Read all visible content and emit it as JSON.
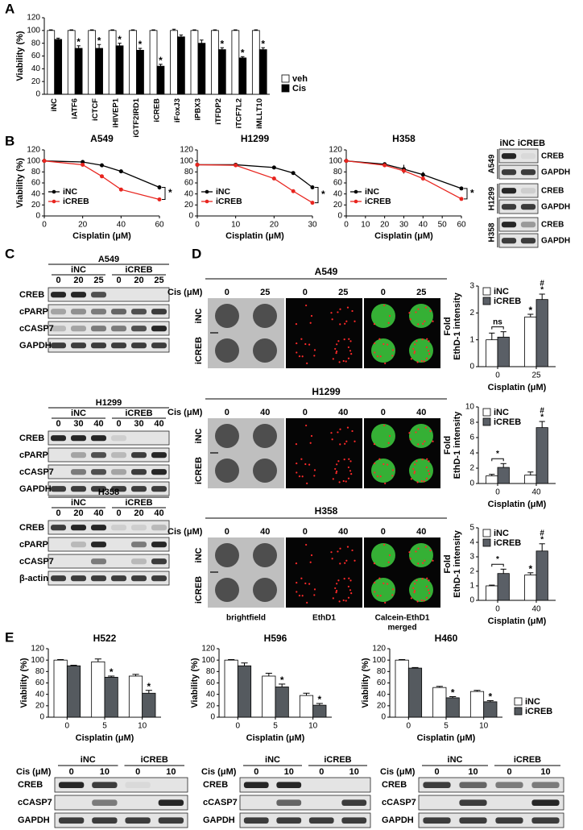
{
  "figure": {
    "panel_labels": [
      "A",
      "B",
      "C",
      "D",
      "E"
    ]
  },
  "chart_data": [
    {
      "type": "bar",
      "ylabel": "Viability (%)",
      "categories": [
        "iNC",
        "iATF6",
        "iCTCF",
        "iHIVEP1",
        "iGTF2IRD1",
        "iCREB",
        "iFoxJ3",
        "iPBX3",
        "iTFDP2",
        "iTCF7L2",
        "iMLLT10"
      ],
      "series": [
        {
          "name": "veh",
          "color": "#ffffff",
          "values": [
            100,
            100,
            100,
            100,
            100,
            100,
            100,
            100,
            100,
            100,
            100
          ],
          "errors": [
            1,
            1,
            1,
            1,
            1,
            1,
            2,
            1,
            1,
            1,
            1
          ]
        },
        {
          "name": "Cis",
          "color": "#000000",
          "values": [
            86,
            72,
            72,
            76,
            69,
            44,
            90,
            80,
            70,
            57,
            70
          ],
          "errors": [
            2,
            4,
            6,
            4,
            3,
            3,
            3,
            5,
            3,
            2,
            3
          ],
          "markers": [
            null,
            "*",
            "*",
            "*",
            "*",
            "*",
            null,
            null,
            "*",
            "*",
            "*"
          ]
        }
      ],
      "ylim": [
        0,
        120
      ],
      "yticks": [
        0,
        20,
        40,
        60,
        80,
        100,
        120
      ],
      "legend": "right"
    },
    {
      "type": "line",
      "title": "A549",
      "xlabel": "Cisplatin (μM)",
      "ylabel": "Viability (%)",
      "x": [
        0,
        20,
        30,
        40,
        60
      ],
      "xlim": [
        0,
        60
      ],
      "xticks": [
        0,
        20,
        40,
        60
      ],
      "ylim": [
        0,
        120
      ],
      "yticks": [
        0,
        20,
        40,
        60,
        80,
        100,
        120
      ],
      "series": [
        {
          "name": "iNC",
          "color": "#000000",
          "values": [
            100,
            98,
            92,
            81,
            52
          ],
          "errors": [
            1,
            2,
            2,
            2,
            4
          ]
        },
        {
          "name": "iCREB",
          "color": "#e8251f",
          "values": [
            100,
            93,
            72,
            48,
            30
          ],
          "errors": [
            1,
            2,
            2,
            2,
            2
          ]
        }
      ],
      "legend": "lower left",
      "annotation": "*"
    },
    {
      "type": "line",
      "title": "H1299",
      "xlabel": "Cisplatin (μM)",
      "x": [
        0,
        10,
        20,
        25,
        30
      ],
      "xlim": [
        0,
        30
      ],
      "xticks": [
        0,
        10,
        20,
        30
      ],
      "ylim": [
        0,
        120
      ],
      "yticks": [
        0,
        20,
        40,
        60,
        80,
        100,
        120
      ],
      "series": [
        {
          "name": "iNC",
          "color": "#000000",
          "values": [
            93,
            93,
            88,
            78,
            52
          ],
          "errors": [
            1,
            2,
            2,
            2,
            3
          ]
        },
        {
          "name": "iCREB",
          "color": "#e8251f",
          "values": [
            93,
            92,
            68,
            45,
            24
          ],
          "errors": [
            1,
            2,
            2,
            3,
            2
          ]
        }
      ],
      "legend": "lower left",
      "annotation": "*"
    },
    {
      "type": "line",
      "title": "H358",
      "xlabel": "Cisplatin (μM)",
      "x": [
        0,
        20,
        30,
        40,
        60
      ],
      "xlim": [
        0,
        60
      ],
      "xticks": [
        0,
        10,
        20,
        30,
        40,
        50,
        60
      ],
      "ylim": [
        0,
        120
      ],
      "yticks": [
        0,
        20,
        40,
        60,
        80,
        100,
        120
      ],
      "series": [
        {
          "name": "iNC",
          "color": "#000000",
          "values": [
            100,
            94,
            85,
            75,
            50
          ],
          "errors": [
            1,
            2,
            8,
            5,
            2
          ]
        },
        {
          "name": "iCREB",
          "color": "#e8251f",
          "values": [
            100,
            92,
            82,
            68,
            31
          ],
          "errors": [
            1,
            2,
            3,
            4,
            2
          ]
        }
      ],
      "legend": "lower left",
      "annotation": "*"
    },
    {
      "type": "bar",
      "ylabel": [
        "Fold",
        "EthD-1 intensity"
      ],
      "xlabel": "Cisplatin (μM)",
      "categories": [
        "0",
        "25"
      ],
      "series": [
        {
          "name": "iNC",
          "color": "#ffffff",
          "values": [
            1.0,
            1.85
          ],
          "errors": [
            0.25,
            0.1
          ],
          "markers": [
            null,
            "*"
          ]
        },
        {
          "name": "iCREB",
          "color": "#5a5f66",
          "values": [
            1.1,
            2.5
          ],
          "errors": [
            0.2,
            0.2
          ],
          "markers": [
            null,
            [
              "#",
              "*"
            ]
          ]
        }
      ],
      "bracket_labels": [
        "ns",
        null
      ],
      "ylim": [
        0,
        3
      ],
      "yticks": [
        0,
        1,
        2,
        3
      ],
      "legend": "upper left"
    },
    {
      "type": "bar",
      "ylabel": [
        "Fold",
        "EthD-1 intensity"
      ],
      "xlabel": "Cisplatin (μM)",
      "categories": [
        "0",
        "40"
      ],
      "series": [
        {
          "name": "iNC",
          "color": "#ffffff",
          "values": [
            1.0,
            1.1
          ],
          "errors": [
            0.2,
            0.4
          ]
        },
        {
          "name": "iCREB",
          "color": "#5a5f66",
          "values": [
            2.1,
            7.3
          ],
          "errors": [
            0.5,
            0.8
          ],
          "markers": [
            null,
            [
              "#",
              "*"
            ]
          ]
        }
      ],
      "bracket_labels": [
        "*",
        null
      ],
      "ylim": [
        0,
        10
      ],
      "yticks": [
        0,
        2,
        4,
        6,
        8,
        10
      ],
      "legend": "upper left"
    },
    {
      "type": "bar",
      "ylabel": [
        "Fold",
        "EthD-1 intensity"
      ],
      "xlabel": "Cisplatin (μM)",
      "categories": [
        "0",
        "40"
      ],
      "series": [
        {
          "name": "iNC",
          "color": "#ffffff",
          "values": [
            1.0,
            1.75
          ],
          "errors": [
            0.05,
            0.15
          ],
          "markers": [
            null,
            "*"
          ]
        },
        {
          "name": "iCREB",
          "color": "#5a5f66",
          "values": [
            1.85,
            3.4
          ],
          "errors": [
            0.3,
            0.5
          ],
          "markers": [
            null,
            [
              "#",
              "*"
            ]
          ]
        }
      ],
      "bracket_labels": [
        "*",
        null
      ],
      "ylim": [
        0,
        5
      ],
      "yticks": [
        0,
        1,
        2,
        3,
        4,
        5
      ],
      "legend": "upper left"
    },
    {
      "type": "bar",
      "title": "H522",
      "ylabel": "Viability (%)",
      "xlabel": "Cisplatin (μM)",
      "categories": [
        "0",
        "5",
        "10"
      ],
      "series": [
        {
          "color": "#ffffff",
          "values": [
            100,
            97,
            72
          ],
          "errors": [
            1,
            5,
            3
          ]
        },
        {
          "color": "#555a5f",
          "values": [
            90,
            70,
            42
          ],
          "errors": [
            1,
            2,
            5
          ],
          "markers": [
            null,
            "*",
            "*"
          ]
        }
      ],
      "ylim": [
        0,
        120
      ],
      "yticks": [
        0,
        20,
        40,
        60,
        80,
        100,
        120
      ]
    },
    {
      "type": "bar",
      "title": "H596",
      "ylabel": "Viability (%)",
      "xlabel": "Cisplatin (μM)",
      "categories": [
        "0",
        "5",
        "10"
      ],
      "series": [
        {
          "color": "#ffffff",
          "values": [
            100,
            72,
            38
          ],
          "errors": [
            1,
            5,
            4
          ]
        },
        {
          "color": "#555a5f",
          "values": [
            90,
            53,
            21
          ],
          "errors": [
            5,
            5,
            3
          ],
          "markers": [
            null,
            "*",
            "*"
          ]
        }
      ],
      "ylim": [
        0,
        120
      ],
      "yticks": [
        0,
        20,
        40,
        60,
        80,
        100,
        120
      ]
    },
    {
      "type": "bar",
      "title": "H460",
      "ylabel": "Viability (%)",
      "xlabel": "Cisplatin (μM)",
      "categories": [
        "0",
        "5",
        "10"
      ],
      "series": [
        {
          "name": "iNC",
          "color": "#ffffff",
          "values": [
            100,
            52,
            45
          ],
          "errors": [
            1,
            2,
            2
          ]
        },
        {
          "name": "iCREB",
          "color": "#555a5f",
          "values": [
            86,
            34,
            27
          ],
          "errors": [
            1,
            2,
            2
          ],
          "markers": [
            null,
            "*",
            "*"
          ]
        }
      ],
      "ylim": [
        0,
        120
      ],
      "yticks": [
        0,
        20,
        40,
        60,
        80,
        100,
        120
      ],
      "legend": "right"
    }
  ],
  "blots_B": {
    "groups": [
      "iNC",
      "iCREB"
    ],
    "cell_lines": [
      {
        "name": "A549",
        "rows": [
          "CREB",
          "GAPDH"
        ]
      },
      {
        "name": "H1299",
        "rows": [
          "CREB",
          "GAPDH"
        ]
      },
      {
        "name": "H358",
        "rows": [
          "CREB",
          "GAPDH"
        ]
      }
    ]
  },
  "blots_C": [
    {
      "title": "A549",
      "groups": [
        "iNC",
        "iCREB"
      ],
      "lanes": [
        0,
        20,
        25,
        0,
        20,
        25
      ],
      "rows": [
        "CREB",
        "cPARP",
        "cCASP7",
        "GAPDH"
      ]
    },
    {
      "title": "H1299",
      "groups": [
        "iNC",
        "iCREB"
      ],
      "lanes": [
        0,
        30,
        40,
        0,
        30,
        40
      ],
      "rows": [
        "CREB",
        "cPARP",
        "cCASP7",
        "GAPDH"
      ]
    },
    {
      "title": "H358",
      "groups": [
        "iNC",
        "iCREB"
      ],
      "lanes": [
        0,
        20,
        40,
        0,
        20,
        40
      ],
      "rows": [
        "CREB",
        "cPARP",
        "cCASP7",
        "β-actin"
      ]
    }
  ],
  "microscopy": {
    "channels": [
      "brightfield",
      "EthD1",
      [
        "Calcein-EthD1",
        "merged"
      ]
    ],
    "cell_lines": [
      {
        "title": "A549",
        "axis_label": "Cis (μM)",
        "doses": [
          0,
          25,
          0,
          25,
          0,
          25
        ],
        "row_labels": [
          "iNC",
          "iCREB"
        ]
      },
      {
        "title": "H1299",
        "axis_label": "Cis (μM)",
        "doses": [
          0,
          40,
          0,
          40,
          0,
          40
        ],
        "row_labels": [
          "iNC",
          "iCREB"
        ]
      },
      {
        "title": "H358",
        "axis_label": "Cis (μM)",
        "doses": [
          0,
          40,
          0,
          40,
          0,
          40
        ],
        "row_labels": [
          "iNC",
          "iCREB"
        ]
      }
    ]
  },
  "blots_E": [
    {
      "axis_label": "Cis (μM)",
      "groups": [
        "iNC",
        "iCREB"
      ],
      "lanes": [
        0,
        10,
        0,
        10
      ],
      "rows": [
        "CREB",
        "cCASP7",
        "GAPDH"
      ]
    },
    {
      "axis_label": "Cis (μM)",
      "groups": [
        "iNC",
        "iCREB"
      ],
      "lanes": [
        0,
        10,
        0,
        10
      ],
      "rows": [
        "CREB",
        "cCASP7",
        "GAPDH"
      ]
    },
    {
      "axis_label": "Cis (μM)",
      "groups": [
        "iNC",
        "iCREB"
      ],
      "lanes": [
        0,
        10,
        0,
        10
      ],
      "rows": [
        "CREB",
        "cCASP7",
        "GAPDH"
      ]
    }
  ]
}
